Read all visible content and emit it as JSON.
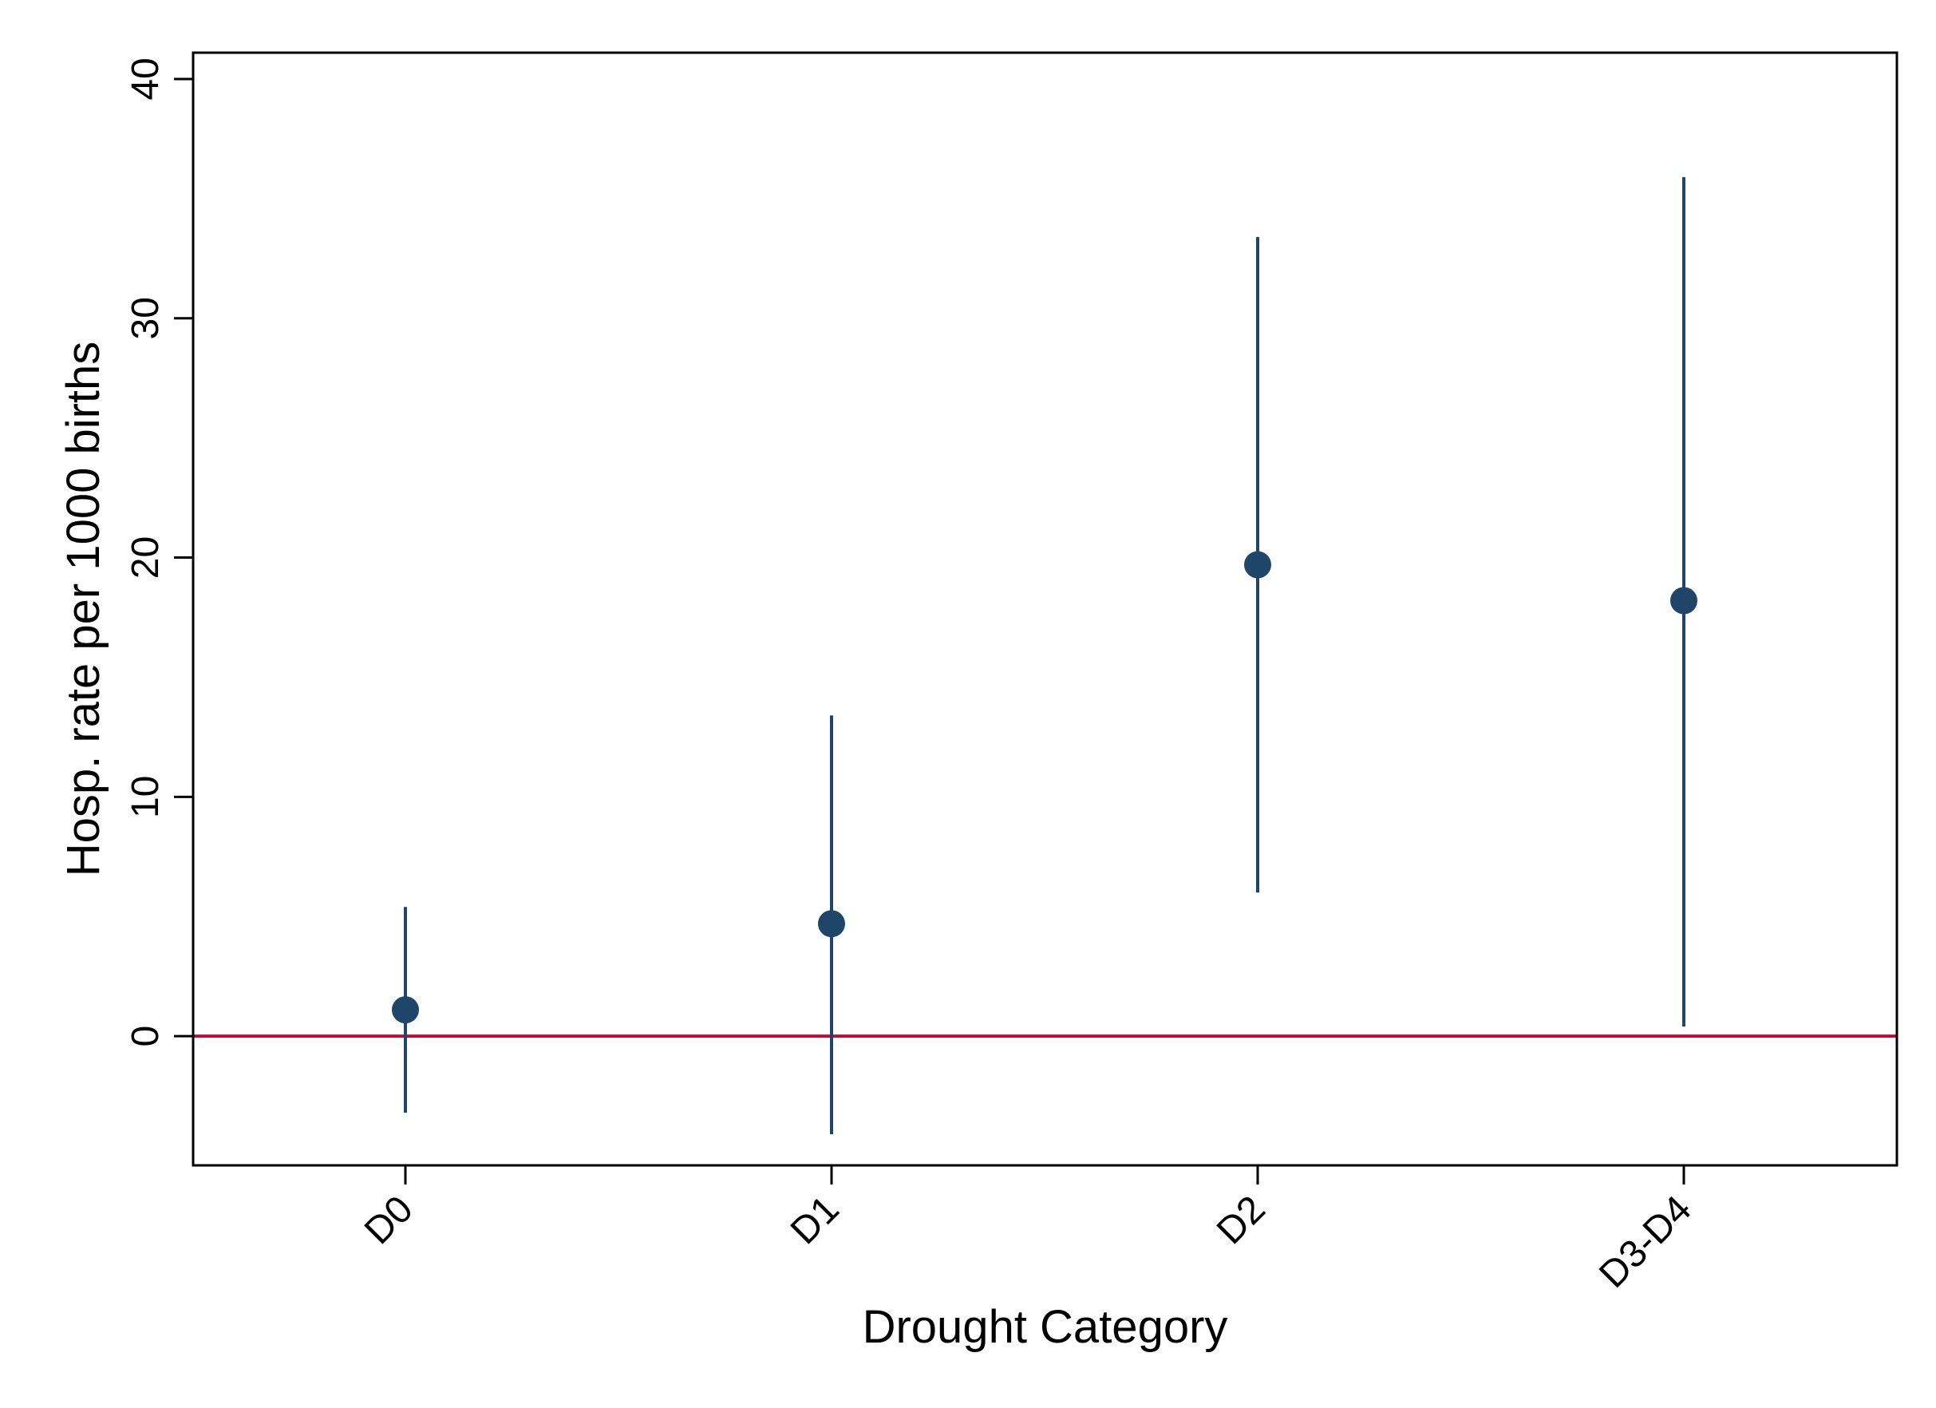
{
  "chart_data": {
    "type": "scatter",
    "title": "",
    "xlabel": "Drought Category",
    "ylabel": "Hosp. rate per 1000 births",
    "categories": [
      "D0",
      "D1",
      "D2",
      "D3-D4"
    ],
    "series": [
      {
        "values": [
          1.1,
          4.7,
          19.7,
          18.2
        ],
        "ci_lower": [
          -3.2,
          -4.1,
          6.0,
          0.4
        ],
        "ci_upper": [
          5.4,
          13.4,
          33.4,
          35.9
        ],
        "color": "#1f4568"
      }
    ],
    "yticks": [
      0,
      10,
      20,
      30,
      40
    ],
    "ylim": [
      -5.4,
      41.1
    ],
    "reference_line": {
      "y": 0,
      "color": "#b0103a"
    },
    "grid": false,
    "legend": "none"
  }
}
